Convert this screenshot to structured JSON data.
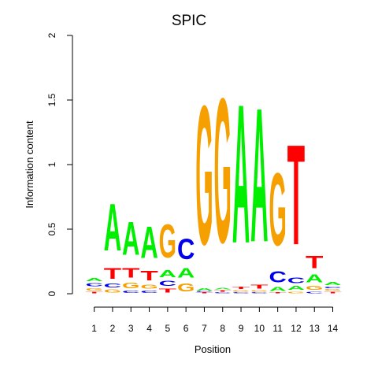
{
  "chart_data": {
    "type": "sequence-logo",
    "title": "SPIC",
    "xlabel": "Position",
    "ylabel": "Information content",
    "ylim": [
      0,
      2
    ],
    "y_ticks": [
      "0",
      "0.5",
      "1",
      "1.5",
      "2"
    ],
    "x_ticks": [
      "1",
      "2",
      "3",
      "4",
      "5",
      "6",
      "7",
      "8",
      "9",
      "10",
      "11",
      "12",
      "13",
      "14"
    ],
    "letter_colors": {
      "A": "#00ee00",
      "C": "#0000ee",
      "G": "#f5a000",
      "T": "#ff0000"
    },
    "positions": [
      [
        {
          "l": "T",
          "h": 0.02
        },
        {
          "l": "G",
          "h": 0.03
        },
        {
          "l": "C",
          "h": 0.04
        },
        {
          "l": "A",
          "h": 0.04
        }
      ],
      [
        {
          "l": "G",
          "h": 0.04
        },
        {
          "l": "C",
          "h": 0.05
        },
        {
          "l": "T",
          "h": 0.13
        },
        {
          "l": "A",
          "h": 0.58
        }
      ],
      [
        {
          "l": "C",
          "h": 0.03
        },
        {
          "l": "G",
          "h": 0.07
        },
        {
          "l": "T",
          "h": 0.12
        },
        {
          "l": "A",
          "h": 0.41
        }
      ],
      [
        {
          "l": "C",
          "h": 0.03
        },
        {
          "l": "G",
          "h": 0.05
        },
        {
          "l": "T",
          "h": 0.12
        },
        {
          "l": "A",
          "h": 0.39
        }
      ],
      [
        {
          "l": "T",
          "h": 0.05
        },
        {
          "l": "C",
          "h": 0.06
        },
        {
          "l": "A",
          "h": 0.09
        },
        {
          "l": "G",
          "h": 0.41
        }
      ],
      [
        {
          "l": "G",
          "h": 0.1
        },
        {
          "l": "A",
          "h": 0.12
        },
        {
          "l": "C",
          "h": 0.25
        }
      ],
      [
        {
          "l": "T",
          "h": 0.01
        },
        {
          "l": "C",
          "h": 0.01
        },
        {
          "l": "A",
          "h": 0.03
        },
        {
          "l": "G",
          "h": 1.72
        }
      ],
      [
        {
          "l": "C",
          "h": 0.01
        },
        {
          "l": "T",
          "h": 0.02
        },
        {
          "l": "A",
          "h": 0.02
        },
        {
          "l": "G",
          "h": 1.79
        }
      ],
      [
        {
          "l": "C",
          "h": 0.01
        },
        {
          "l": "G",
          "h": 0.02
        },
        {
          "l": "T",
          "h": 0.03
        },
        {
          "l": "A",
          "h": 1.72
        }
      ],
      [
        {
          "l": "C",
          "h": 0.01
        },
        {
          "l": "G",
          "h": 0.02
        },
        {
          "l": "T",
          "h": 0.05
        },
        {
          "l": "A",
          "h": 1.66
        }
      ],
      [
        {
          "l": "T",
          "h": 0.01
        },
        {
          "l": "A",
          "h": 0.05
        },
        {
          "l": "C",
          "h": 0.14
        },
        {
          "l": "G",
          "h": 0.9
        }
      ],
      [
        {
          "l": "G",
          "h": 0.02
        },
        {
          "l": "A",
          "h": 0.05
        },
        {
          "l": "C",
          "h": 0.07
        },
        {
          "l": "T",
          "h": 1.24
        }
      ],
      [
        {
          "l": "C",
          "h": 0.02
        },
        {
          "l": "G",
          "h": 0.05
        },
        {
          "l": "A",
          "h": 0.1
        },
        {
          "l": "T",
          "h": 0.15
        }
      ],
      [
        {
          "l": "T",
          "h": 0.02
        },
        {
          "l": "G",
          "h": 0.02
        },
        {
          "l": "C",
          "h": 0.02
        },
        {
          "l": "A",
          "h": 0.04
        }
      ]
    ]
  }
}
